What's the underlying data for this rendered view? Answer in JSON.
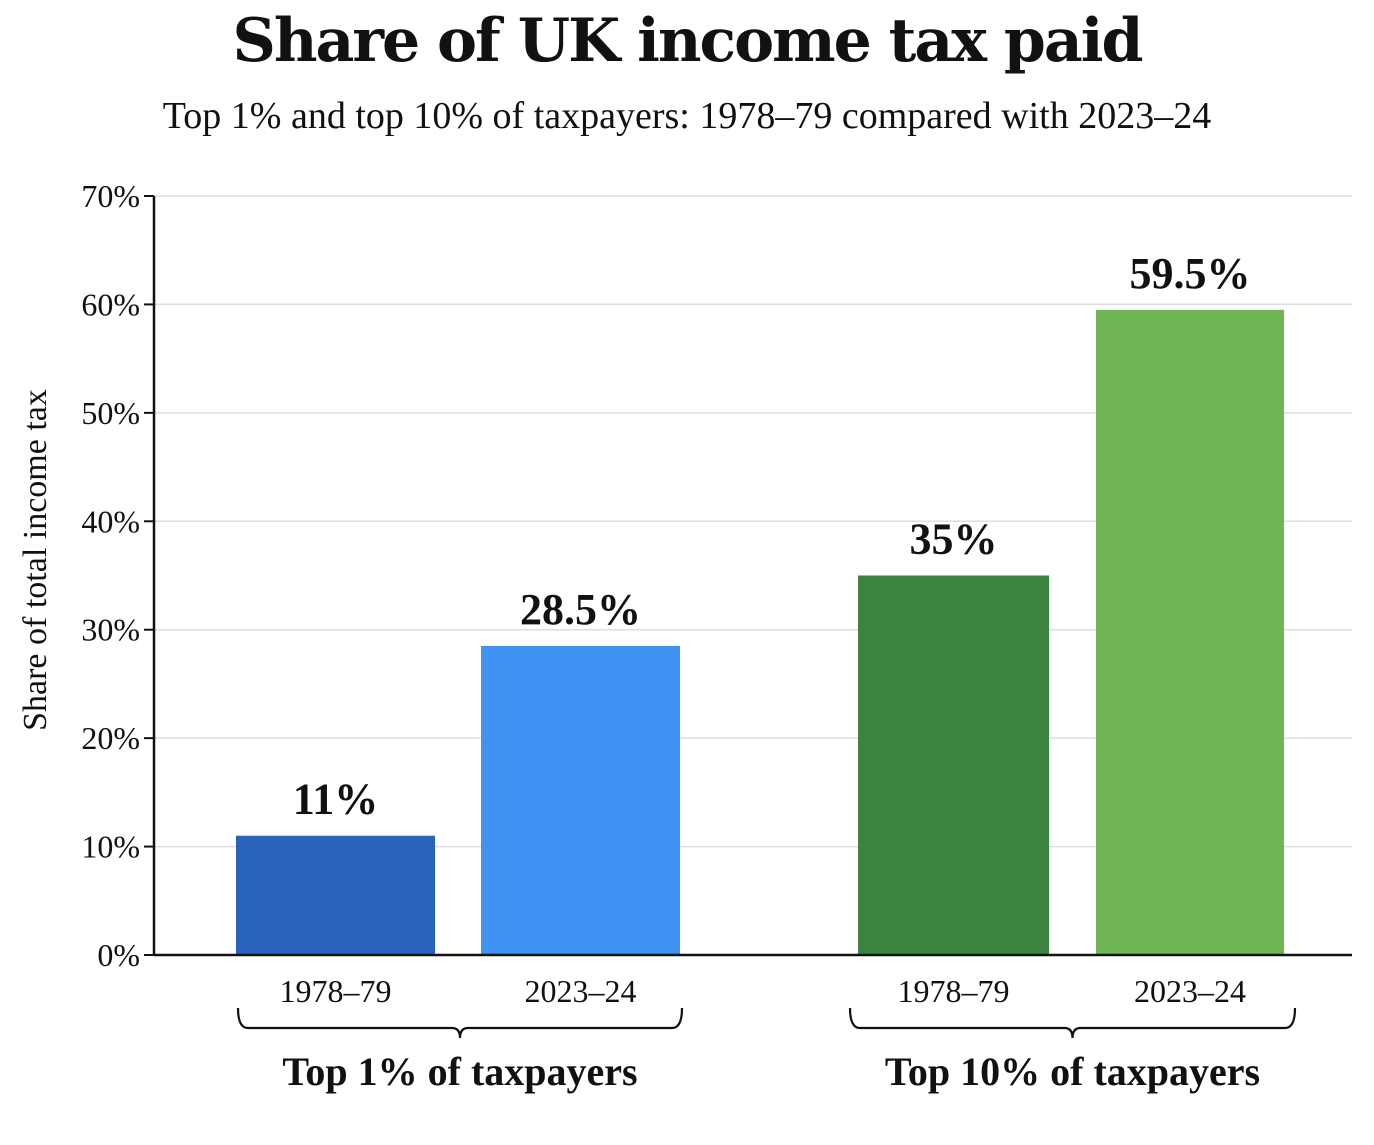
{
  "title": "Share of UK income tax paid",
  "subtitle": "Top 1% and top 10% of taxpayers: 1978–79 compared with 2023–24",
  "chart_data": {
    "type": "bar",
    "ylabel": "Share of total income tax",
    "ylim": [
      0,
      70
    ],
    "yticks": [
      0,
      10,
      20,
      30,
      40,
      50,
      60,
      70
    ],
    "ytick_labels": [
      "0%",
      "10%",
      "20%",
      "30%",
      "40%",
      "50%",
      "60%",
      "70%"
    ],
    "grid": true,
    "groups": [
      {
        "label": "Top 1% of taxpayers",
        "bars": [
          {
            "category": "1978–79",
            "value": 11,
            "label": "11%",
            "color": "#2a62bc"
          },
          {
            "category": "2023–24",
            "value": 28.5,
            "label": "28.5%",
            "color": "#4093f2"
          }
        ]
      },
      {
        "label": "Top 10% of taxpayers",
        "bars": [
          {
            "category": "1978–79",
            "value": 35,
            "label": "35%",
            "color": "#3b843f"
          },
          {
            "category": "2023–24",
            "value": 59.5,
            "label": "59.5%",
            "color": "#6fb655"
          }
        ]
      }
    ]
  }
}
